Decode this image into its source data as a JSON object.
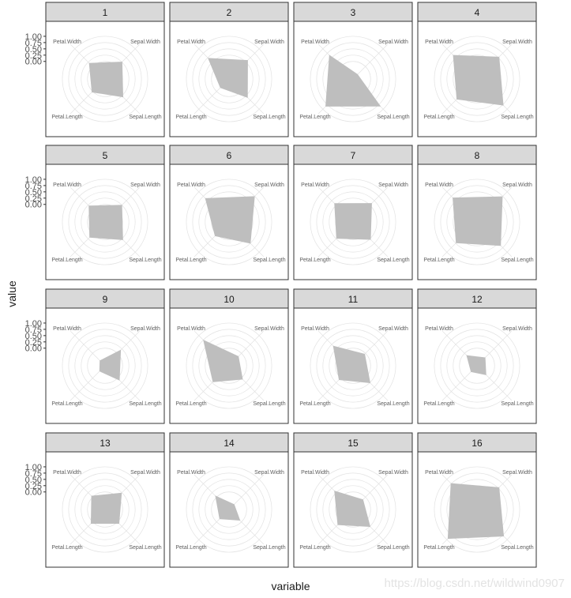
{
  "chart_data": {
    "type": "radar-facets",
    "title": "",
    "xlabel": "variable",
    "ylabel": "value",
    "ylim": [
      -0.7,
      1.25
    ],
    "y_ticks": [
      "1.00",
      "0.75",
      "0.50",
      "0.25",
      "0.00"
    ],
    "variables": [
      "Sepal.Width",
      "Sepal.Length",
      "Petal.Length",
      "Petal.Width"
    ],
    "fill_color": "#bebebe",
    "strip_color": "#d9d9d9",
    "grid": true,
    "panels": [
      {
        "name": "1",
        "values": {
          "Sepal.Width": 0.25,
          "Sepal.Length": 0.3,
          "Petal.Length": 0.03,
          "Petal.Width": 0.18
        }
      },
      {
        "name": "2",
        "values": {
          "Sepal.Width": 0.34,
          "Sepal.Length": 0.33,
          "Petal.Length": -0.22,
          "Petal.Width": 0.46
        }
      },
      {
        "name": "3",
        "values": {
          "Sepal.Width": -0.45,
          "Sepal.Length": 0.82,
          "Petal.Length": 0.83,
          "Petal.Width": 0.62
        }
      },
      {
        "name": "4",
        "values": {
          "Sepal.Width": 0.53,
          "Sepal.Length": 0.77,
          "Petal.Length": 0.43,
          "Petal.Width": 0.63
        }
      },
      {
        "name": "5",
        "values": {
          "Sepal.Width": 0.24,
          "Sepal.Length": 0.29,
          "Petal.Length": 0.16,
          "Petal.Width": 0.2
        }
      },
      {
        "name": "6",
        "values": {
          "Sepal.Width": 0.73,
          "Sepal.Length": 0.49,
          "Petal.Length": 0.08,
          "Petal.Width": 0.62
        }
      },
      {
        "name": "7",
        "values": {
          "Sepal.Width": 0.34,
          "Sepal.Length": 0.28,
          "Petal.Length": 0.22,
          "Petal.Width": 0.33
        }
      },
      {
        "name": "8",
        "values": {
          "Sepal.Width": 0.72,
          "Sepal.Length": 0.62,
          "Petal.Length": 0.47,
          "Petal.Width": 0.65
        }
      },
      {
        "name": "9",
        "values": {
          "Sepal.Width": 0.17,
          "Sepal.Length": 0.1,
          "Petal.Length": -0.4,
          "Petal.Width": -0.42
        }
      },
      {
        "name": "10",
        "values": {
          "Sepal.Width": -0.18,
          "Sepal.Length": 0.05,
          "Petal.Length": 0.2,
          "Petal.Width": 0.73
        }
      },
      {
        "name": "11",
        "values": {
          "Sepal.Width": -0.05,
          "Sepal.Length": 0.25,
          "Petal.Length": 0.08,
          "Petal.Width": 0.4
        }
      },
      {
        "name": "12",
        "values": {
          "Sepal.Width": -0.25,
          "Sepal.Length": -0.2,
          "Petal.Length": -0.37,
          "Petal.Width": -0.13
        }
      },
      {
        "name": "13",
        "values": {
          "Sepal.Width": 0.22,
          "Sepal.Length": 0.08,
          "Petal.Length": 0.08,
          "Petal.Width": 0.05
        }
      },
      {
        "name": "14",
        "values": {
          "Sepal.Width": -0.42,
          "Sepal.Length": -0.1,
          "Petal.Length": -0.18,
          "Petal.Width": 0.05
        }
      },
      {
        "name": "15",
        "values": {
          "Sepal.Width": -0.15,
          "Sepal.Length": 0.25,
          "Petal.Length": 0.15,
          "Petal.Width": 0.33
        }
      },
      {
        "name": "16",
        "values": {
          "Sepal.Width": 0.53,
          "Sepal.Length": 0.79,
          "Petal.Length": 0.93,
          "Petal.Width": 0.76
        }
      }
    ]
  },
  "watermark": "https://blog.csdn.net/wildwind0907"
}
